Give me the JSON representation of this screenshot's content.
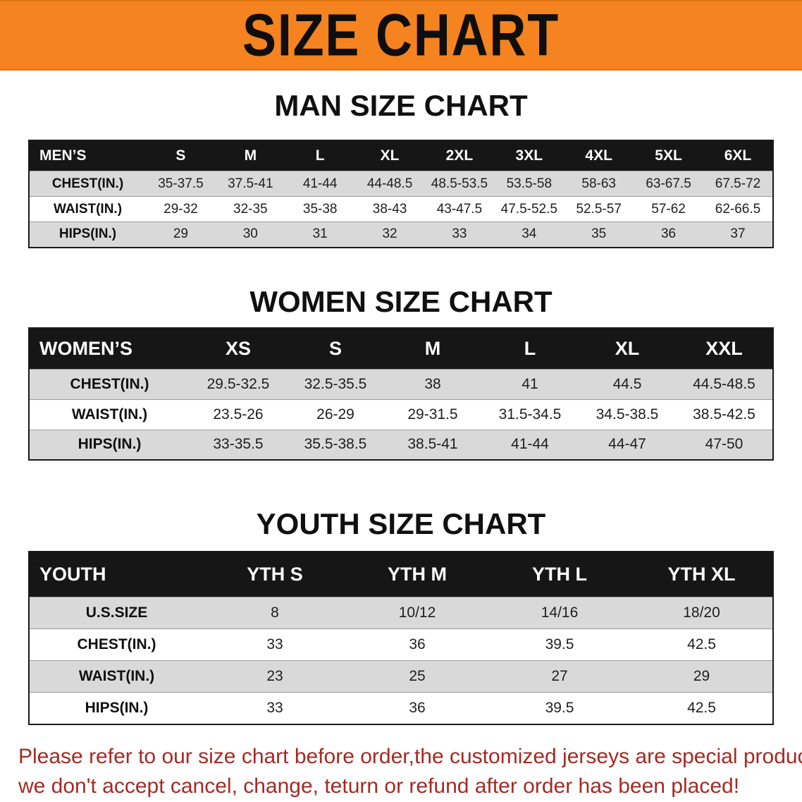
{
  "banner": {
    "title": "SIZE CHART"
  },
  "colors": {
    "banner_orange": "#f5831f",
    "table_header_black": "#161616",
    "row_stripe_gray": "#d9d9d9",
    "disclaimer_red": "#a42a24"
  },
  "sections": [
    {
      "heading": "MAN SIZE CHART",
      "table": {
        "header": [
          "MEN’S",
          "S",
          "M",
          "L",
          "XL",
          "2XL",
          "3XL",
          "4XL",
          "5XL",
          "6XL"
        ],
        "rows": [
          [
            "CHEST(IN.)",
            "35-37.5",
            "37.5-41",
            "41-44",
            "44-48.5",
            "48.5-53.5",
            "53.5-58",
            "58-63",
            "63-67.5",
            "67.5-72"
          ],
          [
            "WAIST(IN.)",
            "29-32",
            "32-35",
            "35-38",
            "38-43",
            "43-47.5",
            "47.5-52.5",
            "52.5-57",
            "57-62",
            "62-66.5"
          ],
          [
            "HIPS(IN.)",
            "29",
            "30",
            "31",
            "32",
            "33",
            "34",
            "35",
            "36",
            "37"
          ]
        ]
      }
    },
    {
      "heading": "WOMEN SIZE CHART",
      "table": {
        "header": [
          "WOMEN’S",
          "XS",
          "S",
          "M",
          "L",
          "XL",
          "XXL"
        ],
        "rows": [
          [
            "CHEST(IN.)",
            "29.5-32.5",
            "32.5-35.5",
            "38",
            "41",
            "44.5",
            "44.5-48.5"
          ],
          [
            "WAIST(IN.)",
            "23.5-26",
            "26-29",
            "29-31.5",
            "31.5-34.5",
            "34.5-38.5",
            "38.5-42.5"
          ],
          [
            "HIPS(IN.)",
            "33-35.5",
            "35.5-38.5",
            "38.5-41",
            "41-44",
            "44-47",
            "47-50"
          ]
        ]
      }
    },
    {
      "heading": "YOUTH SIZE CHART",
      "table": {
        "header": [
          "YOUTH",
          "YTH S",
          "YTH M",
          "YTH L",
          "YTH XL"
        ],
        "rows": [
          [
            "U.S.SIZE",
            "8",
            "10/12",
            "14/16",
            "18/20"
          ],
          [
            "CHEST(IN.)",
            "33",
            "36",
            "39.5",
            "42.5"
          ],
          [
            "WAIST(IN.)",
            "23",
            "25",
            "27",
            "29"
          ],
          [
            "HIPS(IN.)",
            "33",
            "36",
            "39.5",
            "42.5"
          ]
        ]
      }
    }
  ],
  "disclaimer": {
    "line1": "Please refer to our size chart before order,the customized jerseys are special products,",
    "line2": "we don't accept cancel, change, teturn or refund after order has been placed!"
  }
}
